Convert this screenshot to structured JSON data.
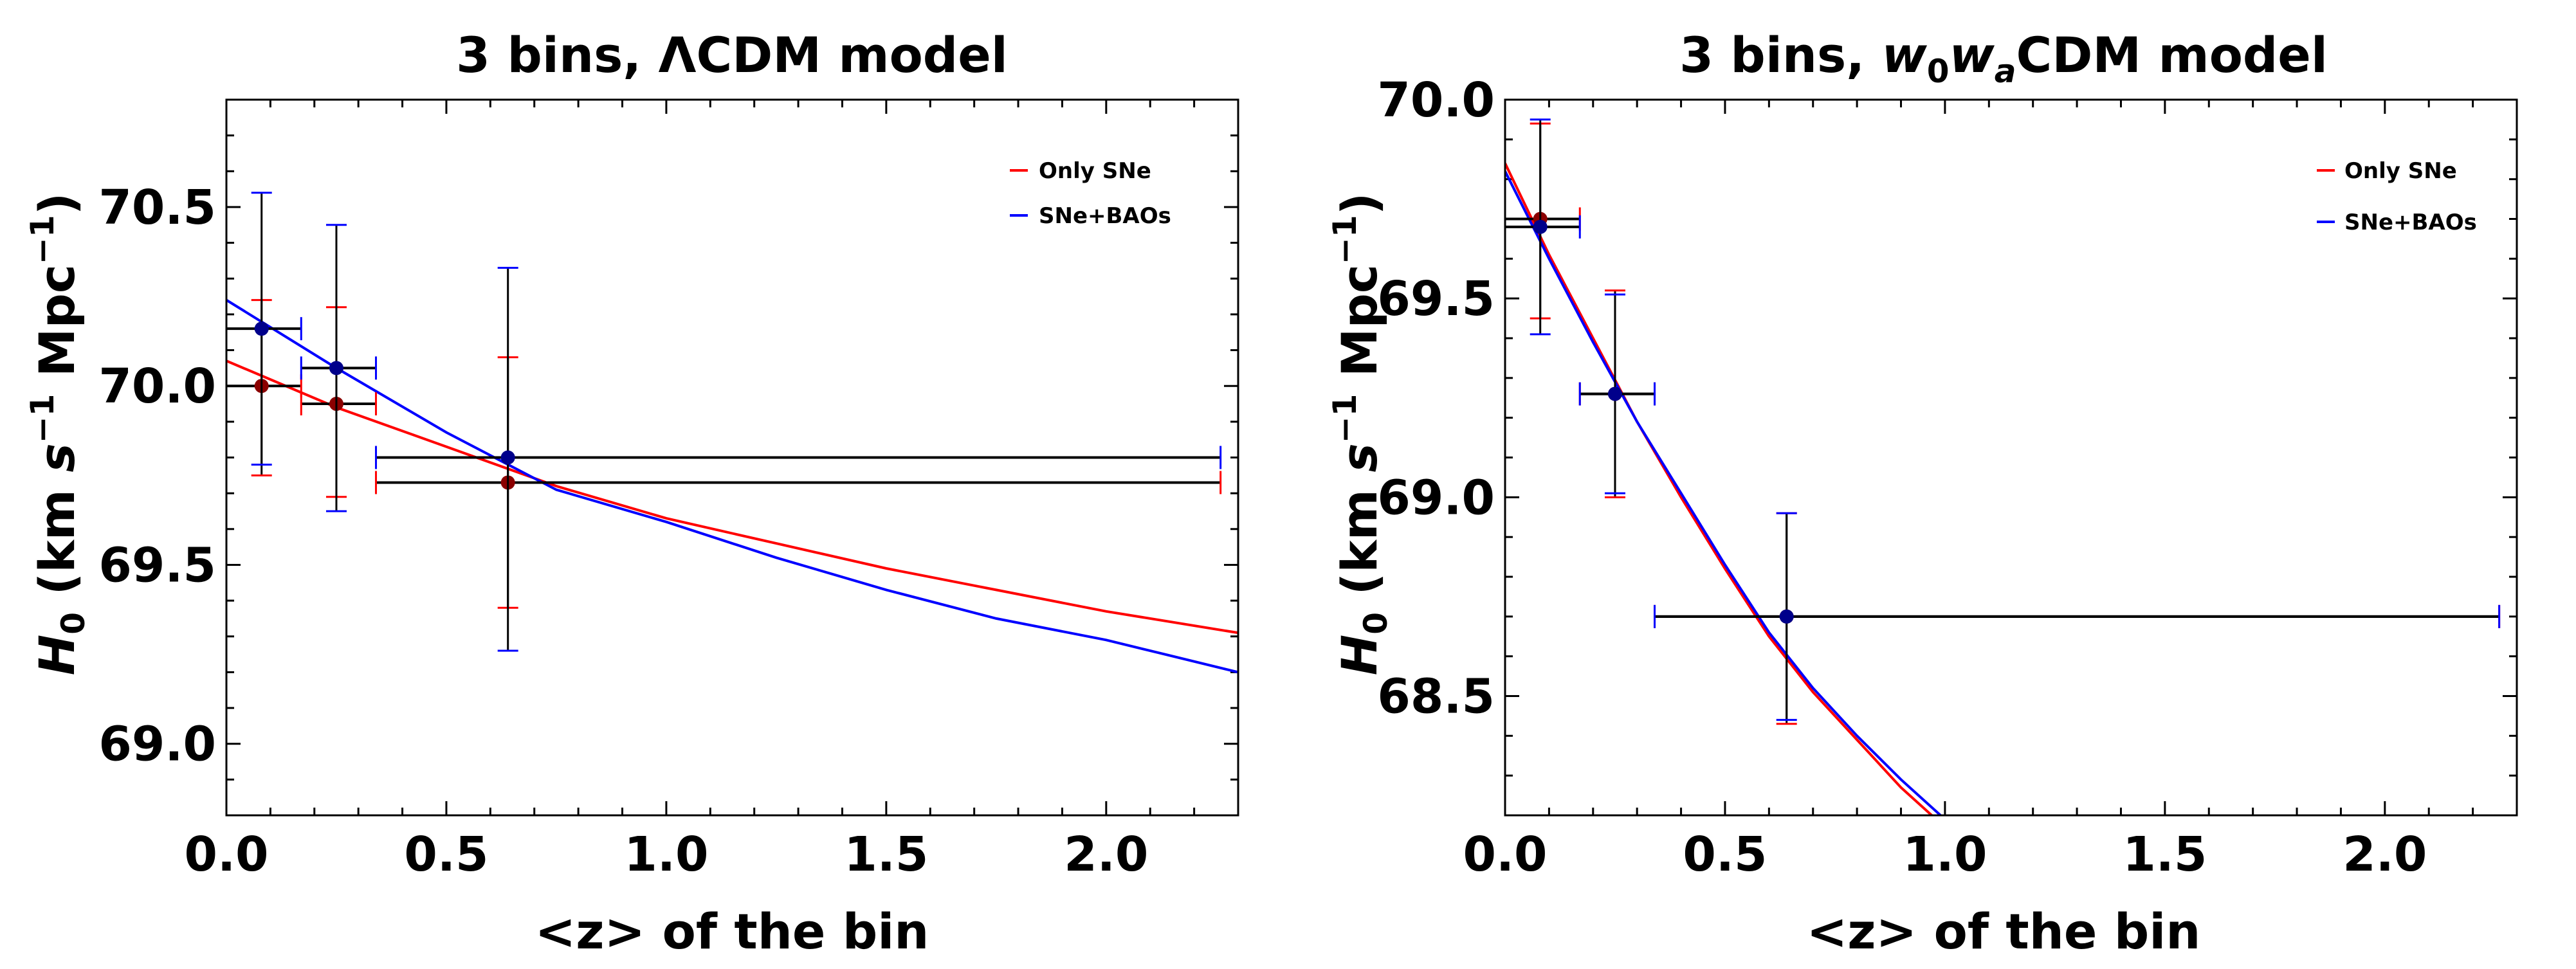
{
  "chart_data": [
    {
      "type": "line",
      "title": "3 bins, ΛCDM model",
      "xlabel": "<z> of the bin",
      "ylabel": "H0 (km s^-1 Mpc^-1)",
      "xlim": [
        0.0,
        2.3
      ],
      "ylim": [
        68.8,
        70.8
      ],
      "xticks": [
        0.0,
        0.5,
        1.0,
        1.5,
        2.0
      ],
      "xtick_labels": [
        "0.0",
        "0.5",
        "1.0",
        "1.5",
        "2.0"
      ],
      "yticks": [
        69.0,
        69.5,
        70.0,
        70.5
      ],
      "ytick_labels": [
        "69.0",
        "69.5",
        "70.0",
        "70.5"
      ],
      "legend_position": "top-right",
      "series": [
        {
          "name": "Only SNe",
          "color": "#ff0000",
          "marker_color": "#8b0000",
          "fit": {
            "x": [
              0.0,
              0.25,
              0.5,
              0.75,
              1.0,
              1.25,
              1.5,
              1.75,
              2.0,
              2.3
            ],
            "y": [
              70.07,
              69.94,
              69.83,
              69.72,
              69.63,
              69.56,
              69.49,
              69.43,
              69.37,
              69.31
            ]
          },
          "points": [
            {
              "z": 0.08,
              "H0": 70.0,
              "zlo": 0.0,
              "zhi": 0.17,
              "err_lo": 0.25,
              "err_hi": 0.24
            },
            {
              "z": 0.25,
              "H0": 69.95,
              "zlo": 0.17,
              "zhi": 0.34,
              "err_lo": 0.26,
              "err_hi": 0.27
            },
            {
              "z": 0.64,
              "H0": 69.73,
              "zlo": 0.34,
              "zhi": 2.26,
              "err_lo": 0.35,
              "err_hi": 0.35
            }
          ]
        },
        {
          "name": "SNe+BAOs",
          "color": "#0000ff",
          "marker_color": "#00008b",
          "fit": {
            "x": [
              0.0,
              0.25,
              0.5,
              0.75,
              1.0,
              1.25,
              1.5,
              1.75,
              2.0,
              2.3
            ],
            "y": [
              70.24,
              70.05,
              69.87,
              69.71,
              69.62,
              69.52,
              69.43,
              69.35,
              69.29,
              69.2
            ]
          },
          "points": [
            {
              "z": 0.08,
              "H0": 70.16,
              "zlo": 0.0,
              "zhi": 0.17,
              "err_lo": 0.38,
              "err_hi": 0.38
            },
            {
              "z": 0.25,
              "H0": 70.05,
              "zlo": 0.17,
              "zhi": 0.34,
              "err_lo": 0.4,
              "err_hi": 0.4
            },
            {
              "z": 0.64,
              "H0": 69.8,
              "zlo": 0.34,
              "zhi": 2.26,
              "err_lo": 0.54,
              "err_hi": 0.53
            }
          ]
        }
      ]
    },
    {
      "type": "line",
      "title": "3 bins, w0waCDM model",
      "xlabel": "<z> of the bin",
      "ylabel": "H0 (km s^-1 Mpc^-1)",
      "xlim": [
        0.0,
        2.3
      ],
      "ylim": [
        68.2,
        70.0
      ],
      "xticks": [
        0.0,
        0.5,
        1.0,
        1.5,
        2.0
      ],
      "xtick_labels": [
        "0.0",
        "0.5",
        "1.0",
        "1.5",
        "2.0"
      ],
      "yticks": [
        68.5,
        69.0,
        69.5,
        70.0
      ],
      "ytick_labels": [
        "68.5",
        "69.0",
        "69.5",
        "70.0"
      ],
      "legend_position": "top-right",
      "series": [
        {
          "name": "Only SNe",
          "color": "#ff0000",
          "marker_color": "#8b0000",
          "fit": {
            "x": [
              0.0,
              0.1,
              0.2,
              0.3,
              0.4,
              0.5,
              0.6,
              0.7,
              0.8,
              0.9,
              1.0
            ],
            "y": [
              69.84,
              69.61,
              69.4,
              69.19,
              69.0,
              68.82,
              68.65,
              68.51,
              68.39,
              68.27,
              68.17
            ]
          },
          "points": [
            {
              "z": 0.08,
              "H0": 69.7,
              "zlo": 0.0,
              "zhi": 0.17,
              "err_lo": 0.25,
              "err_hi": 0.24
            },
            {
              "z": 0.25,
              "H0": 69.26,
              "zlo": 0.17,
              "zhi": 0.34,
              "err_lo": 0.26,
              "err_hi": 0.26
            },
            {
              "z": 0.64,
              "H0": 68.7,
              "zlo": 0.34,
              "zhi": 2.26,
              "err_lo": 0.27,
              "err_hi": 0.26
            }
          ]
        },
        {
          "name": "SNe+BAOs",
          "color": "#0000ff",
          "marker_color": "#00008b",
          "fit": {
            "x": [
              0.0,
              0.1,
              0.2,
              0.3,
              0.4,
              0.5,
              0.6,
              0.7,
              0.8,
              0.9,
              1.0
            ],
            "y": [
              69.82,
              69.6,
              69.39,
              69.19,
              69.01,
              68.83,
              68.66,
              68.52,
              68.4,
              68.29,
              68.19
            ]
          },
          "points": [
            {
              "z": 0.08,
              "H0": 69.68,
              "zlo": 0.0,
              "zhi": 0.17,
              "err_lo": 0.27,
              "err_hi": 0.27
            },
            {
              "z": 0.25,
              "H0": 69.26,
              "zlo": 0.17,
              "zhi": 0.34,
              "err_lo": 0.25,
              "err_hi": 0.25
            },
            {
              "z": 0.64,
              "H0": 68.7,
              "zlo": 0.34,
              "zhi": 2.26,
              "err_lo": 0.26,
              "err_hi": 0.26
            }
          ]
        }
      ]
    }
  ]
}
